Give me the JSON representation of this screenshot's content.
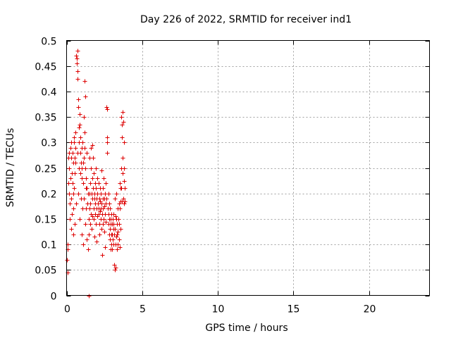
{
  "chart_data": {
    "type": "scatter",
    "title": "Day 226 of 2022, SRMTID for receiver ind1",
    "xlabel": "GPS time / hours",
    "ylabel": "SRMTID / TECUs",
    "xlim": [
      0,
      24
    ],
    "ylim": [
      0,
      0.5
    ],
    "xticks": [
      0,
      5,
      10,
      15,
      20
    ],
    "yticks": [
      0,
      0.05,
      0.1,
      0.15,
      0.2,
      0.25,
      0.3,
      0.35,
      0.4,
      0.45,
      0.5
    ],
    "xtick_labels": [
      "0",
      "5",
      "10",
      "15",
      "20"
    ],
    "ytick_labels": [
      "0",
      "0.05",
      "0.1",
      "0.15",
      "0.2",
      "0.25",
      "0.3",
      "0.35",
      "0.4",
      "0.45",
      "0.5"
    ],
    "grid": true,
    "marker": "+",
    "color": "#dd0000",
    "series": [
      {
        "name": "SRMTID",
        "points": [
          [
            0.02,
            0.07
          ],
          [
            0.05,
            0.045
          ],
          [
            0.05,
            0.1
          ],
          [
            0.08,
            0.09
          ],
          [
            0.1,
            0.22
          ],
          [
            0.12,
            0.27
          ],
          [
            0.15,
            0.28
          ],
          [
            0.15,
            0.2
          ],
          [
            0.18,
            0.25
          ],
          [
            0.2,
            0.18
          ],
          [
            0.22,
            0.15
          ],
          [
            0.25,
            0.29
          ],
          [
            0.25,
            0.23
          ],
          [
            0.28,
            0.19
          ],
          [
            0.3,
            0.27
          ],
          [
            0.3,
            0.13
          ],
          [
            0.32,
            0.3
          ],
          [
            0.35,
            0.24
          ],
          [
            0.35,
            0.16
          ],
          [
            0.38,
            0.22
          ],
          [
            0.4,
            0.28
          ],
          [
            0.42,
            0.12
          ],
          [
            0.42,
            0.2
          ],
          [
            0.45,
            0.26
          ],
          [
            0.45,
            0.17
          ],
          [
            0.48,
            0.31
          ],
          [
            0.5,
            0.3
          ],
          [
            0.5,
            0.21
          ],
          [
            0.52,
            0.27
          ],
          [
            0.55,
            0.24
          ],
          [
            0.55,
            0.14
          ],
          [
            0.58,
            0.29
          ],
          [
            0.6,
            0.32
          ],
          [
            0.6,
            0.26
          ],
          [
            0.62,
            0.18
          ],
          [
            0.65,
            0.47
          ],
          [
            0.66,
            0.465
          ],
          [
            0.68,
            0.455
          ],
          [
            0.7,
            0.48
          ],
          [
            0.7,
            0.44
          ],
          [
            0.72,
            0.425
          ],
          [
            0.72,
            0.28
          ],
          [
            0.75,
            0.37
          ],
          [
            0.75,
            0.2
          ],
          [
            0.78,
            0.385
          ],
          [
            0.8,
            0.3
          ],
          [
            0.8,
            0.25
          ],
          [
            0.82,
            0.33
          ],
          [
            0.85,
            0.355
          ],
          [
            0.85,
            0.15
          ],
          [
            0.88,
            0.335
          ],
          [
            0.9,
            0.31
          ],
          [
            0.9,
            0.24
          ],
          [
            0.92,
            0.28
          ],
          [
            0.95,
            0.26
          ],
          [
            0.95,
            0.19
          ],
          [
            0.98,
            0.29
          ],
          [
            1.0,
            0.25
          ],
          [
            1.0,
            0.12
          ],
          [
            1.02,
            0.23
          ],
          [
            1.05,
            0.3
          ],
          [
            1.05,
            0.17
          ],
          [
            1.08,
            0.26
          ],
          [
            1.1,
            0.22
          ],
          [
            1.1,
            0.1
          ],
          [
            1.12,
            0.27
          ],
          [
            1.15,
            0.35
          ],
          [
            1.15,
            0.19
          ],
          [
            1.18,
            0.29
          ],
          [
            1.2,
            0.42
          ],
          [
            1.2,
            0.32
          ],
          [
            1.22,
            0.39
          ],
          [
            1.25,
            0.25
          ],
          [
            1.25,
            0.14
          ],
          [
            1.28,
            0.21
          ],
          [
            1.3,
            0.23
          ],
          [
            1.3,
            0.17
          ],
          [
            1.32,
            0.11
          ],
          [
            1.35,
            0.28
          ],
          [
            1.35,
            0.21
          ],
          [
            1.38,
            0.18
          ],
          [
            1.4,
            0.09
          ],
          [
            1.42,
            0.2
          ],
          [
            1.45,
            0.15
          ],
          [
            1.45,
            0.0
          ],
          [
            1.48,
            0.12
          ],
          [
            1.5,
            0.27
          ],
          [
            1.5,
            0.2
          ],
          [
            1.52,
            0.17
          ],
          [
            1.55,
            0.14
          ],
          [
            1.55,
            0.22
          ],
          [
            1.58,
            0.18
          ],
          [
            1.6,
            0.16
          ],
          [
            1.62,
            0.25
          ],
          [
            1.62,
            0.29
          ],
          [
            1.65,
            0.2
          ],
          [
            1.65,
            0.13
          ],
          [
            1.68,
            0.19
          ],
          [
            1.7,
            0.295
          ],
          [
            1.7,
            0.23
          ],
          [
            1.72,
            0.155
          ],
          [
            1.75,
            0.21
          ],
          [
            1.75,
            0.27
          ],
          [
            1.78,
            0.17
          ],
          [
            1.8,
            0.15
          ],
          [
            1.8,
            0.24
          ],
          [
            1.82,
            0.19
          ],
          [
            1.85,
            0.115
          ],
          [
            1.85,
            0.2
          ],
          [
            1.88,
            0.16
          ],
          [
            1.9,
            0.22
          ],
          [
            1.9,
            0.18
          ],
          [
            1.92,
            0.14
          ],
          [
            1.95,
            0.25
          ],
          [
            1.95,
            0.21
          ],
          [
            1.98,
            0.17
          ],
          [
            2.0,
            0.19
          ],
          [
            2.0,
            0.105
          ],
          [
            2.02,
            0.23
          ],
          [
            2.05,
            0.155
          ],
          [
            2.05,
            0.2
          ],
          [
            2.08,
            0.18
          ],
          [
            2.1,
            0.16
          ],
          [
            2.1,
            0.22
          ],
          [
            2.12,
            0.17
          ],
          [
            2.15,
            0.14
          ],
          [
            2.15,
            0.19
          ],
          [
            2.18,
            0.12
          ],
          [
            2.2,
            0.21
          ],
          [
            2.2,
            0.165
          ],
          [
            2.22,
            0.185
          ],
          [
            2.25,
            0.15
          ],
          [
            2.25,
            0.2
          ],
          [
            2.28,
            0.17
          ],
          [
            2.3,
            0.245
          ],
          [
            2.3,
            0.13
          ],
          [
            2.32,
            0.18
          ],
          [
            2.35,
            0.16
          ],
          [
            2.35,
            0.08
          ],
          [
            2.38,
            0.19
          ],
          [
            2.4,
            0.14
          ],
          [
            2.4,
            0.21
          ],
          [
            2.42,
            0.17
          ],
          [
            2.45,
            0.15
          ],
          [
            2.45,
            0.23
          ],
          [
            2.48,
            0.19
          ],
          [
            2.5,
            0.125
          ],
          [
            2.5,
            0.175
          ],
          [
            2.52,
            0.2
          ],
          [
            2.55,
            0.16
          ],
          [
            2.55,
            0.095
          ],
          [
            2.58,
            0.18
          ],
          [
            2.6,
            0.145
          ],
          [
            2.6,
            0.22
          ],
          [
            2.62,
            0.19
          ],
          [
            2.65,
            0.37
          ],
          [
            2.66,
            0.365
          ],
          [
            2.68,
            0.3
          ],
          [
            2.7,
            0.31
          ],
          [
            2.7,
            0.28
          ],
          [
            2.72,
            0.17
          ],
          [
            2.75,
            0.14
          ],
          [
            2.75,
            0.2
          ],
          [
            2.78,
            0.16
          ],
          [
            2.8,
            0.18
          ],
          [
            2.8,
            0.12
          ],
          [
            2.82,
            0.15
          ],
          [
            2.85,
            0.11
          ],
          [
            2.85,
            0.17
          ],
          [
            2.88,
            0.13
          ],
          [
            2.9,
            0.15
          ],
          [
            2.9,
            0.09
          ],
          [
            2.92,
            0.14
          ],
          [
            2.95,
            0.12
          ],
          [
            2.95,
            0.16
          ],
          [
            2.98,
            0.1
          ],
          [
            3.0,
            0.14
          ],
          [
            3.0,
            0.09
          ],
          [
            3.02,
            0.12
          ],
          [
            3.05,
            0.15
          ],
          [
            3.05,
            0.11
          ],
          [
            3.08,
            0.13
          ],
          [
            3.1,
            0.1
          ],
          [
            3.1,
            0.16
          ],
          [
            3.12,
            0.14
          ],
          [
            3.15,
            0.06
          ],
          [
            3.15,
            0.12
          ],
          [
            3.18,
            0.05
          ],
          [
            3.2,
            0.19
          ],
          [
            3.2,
            0.13
          ],
          [
            3.22,
            0.1
          ],
          [
            3.25,
            0.055
          ],
          [
            3.25,
            0.155
          ],
          [
            3.28,
            0.115
          ],
          [
            3.3,
            0.2
          ],
          [
            3.3,
            0.15
          ],
          [
            3.32,
            0.12
          ],
          [
            3.35,
            0.09
          ],
          [
            3.35,
            0.14
          ],
          [
            3.38,
            0.17
          ],
          [
            3.4,
            0.125
          ],
          [
            3.4,
            0.1
          ],
          [
            3.42,
            0.15
          ],
          [
            3.45,
            0.18
          ],
          [
            3.45,
            0.11
          ],
          [
            3.48,
            0.14
          ],
          [
            3.5,
            0.22
          ],
          [
            3.5,
            0.17
          ],
          [
            3.52,
            0.095
          ],
          [
            3.55,
            0.21
          ],
          [
            3.55,
            0.13
          ],
          [
            3.58,
            0.185
          ],
          [
            3.6,
            0.35
          ],
          [
            3.6,
            0.25
          ],
          [
            3.62,
            0.21
          ],
          [
            3.65,
            0.335
          ],
          [
            3.65,
            0.185
          ],
          [
            3.68,
            0.31
          ],
          [
            3.7,
            0.36
          ],
          [
            3.7,
            0.27
          ],
          [
            3.72,
            0.24
          ],
          [
            3.75,
            0.34
          ],
          [
            3.75,
            0.19
          ],
          [
            3.78,
            0.225
          ],
          [
            3.8,
            0.3
          ],
          [
            3.8,
            0.18
          ],
          [
            3.82,
            0.25
          ],
          [
            3.85,
            0.185
          ],
          [
            3.85,
            0.21
          ]
        ]
      }
    ]
  }
}
